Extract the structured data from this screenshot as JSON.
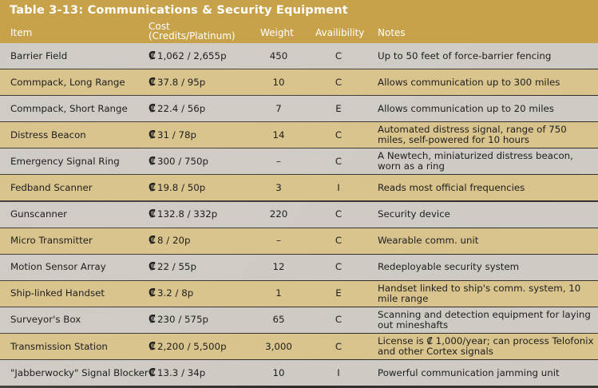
{
  "table": {
    "title": "Table 3-13: Communications & Security Equipment",
    "headers": {
      "item": "Item",
      "cost_line1": "Cost",
      "cost_line2": "(Credits/Platinum)",
      "weight": "Weight",
      "availability": "Availibility",
      "notes": "Notes"
    },
    "credit_symbol": "₡",
    "rows": [
      {
        "item": "Barrier Field",
        "cost": "1,062 / 2,655p",
        "weight": "450",
        "availability": "C",
        "notes": "Up to 50 feet of force-barrier fencing"
      },
      {
        "item": "Commpack, Long Range",
        "cost": "37.8 / 95p",
        "weight": "10",
        "availability": "C",
        "notes": "Allows communication up to 300 miles"
      },
      {
        "item": "Commpack, Short Range",
        "cost": "22.4 / 56p",
        "weight": "7",
        "availability": "E",
        "notes": "Allows communication up to 20 miles"
      },
      {
        "item": "Distress Beacon",
        "cost": "31 / 78p",
        "weight": "14",
        "availability": "C",
        "notes": "Automated distress signal, range of 750 miles, self-powered for 10 hours"
      },
      {
        "item": "Emergency Signal Ring",
        "cost": "300 / 750p",
        "weight": "–",
        "availability": "C",
        "notes": "A Newtech, miniaturized distress beacon, worn as a ring"
      },
      {
        "item": "Fedband Scanner",
        "cost": "19.8 / 50p",
        "weight": "3",
        "availability": "I",
        "notes": "Reads most official frequencies"
      },
      {
        "item": "Gunscanner",
        "cost": "132.8 / 332p",
        "weight": "220",
        "availability": "C",
        "notes": "Security device"
      },
      {
        "item": "Micro Transmitter",
        "cost": "8 / 20p",
        "weight": "–",
        "availability": "C",
        "notes": "Wearable comm. unit"
      },
      {
        "item": "Motion Sensor Array",
        "cost": "22 / 55p",
        "weight": "12",
        "availability": "C",
        "notes": "Redeployable security system"
      },
      {
        "item": "Ship-linked Handset",
        "cost": "3.2 / 8p",
        "weight": "1",
        "availability": "E",
        "notes": "Handset linked to ship's comm. system, 10 mile range"
      },
      {
        "item": "Surveyor's Box",
        "cost": "230 / 575p",
        "weight": "65",
        "availability": "C",
        "notes": "Scanning and detection equipment for laying out mineshafts"
      },
      {
        "item": "Transmission Station",
        "cost": "2,200 / 5,500p",
        "weight": "3,000",
        "availability": "C",
        "notes": "License is ₡ 1,000/year; can process Telofonix and other Cortex signals"
      },
      {
        "item": "\"Jabberwocky\" Signal Blocker",
        "cost": "13.3 / 34p",
        "weight": "10",
        "availability": "I",
        "notes": "Powerful communication jamming unit"
      }
    ]
  }
}
